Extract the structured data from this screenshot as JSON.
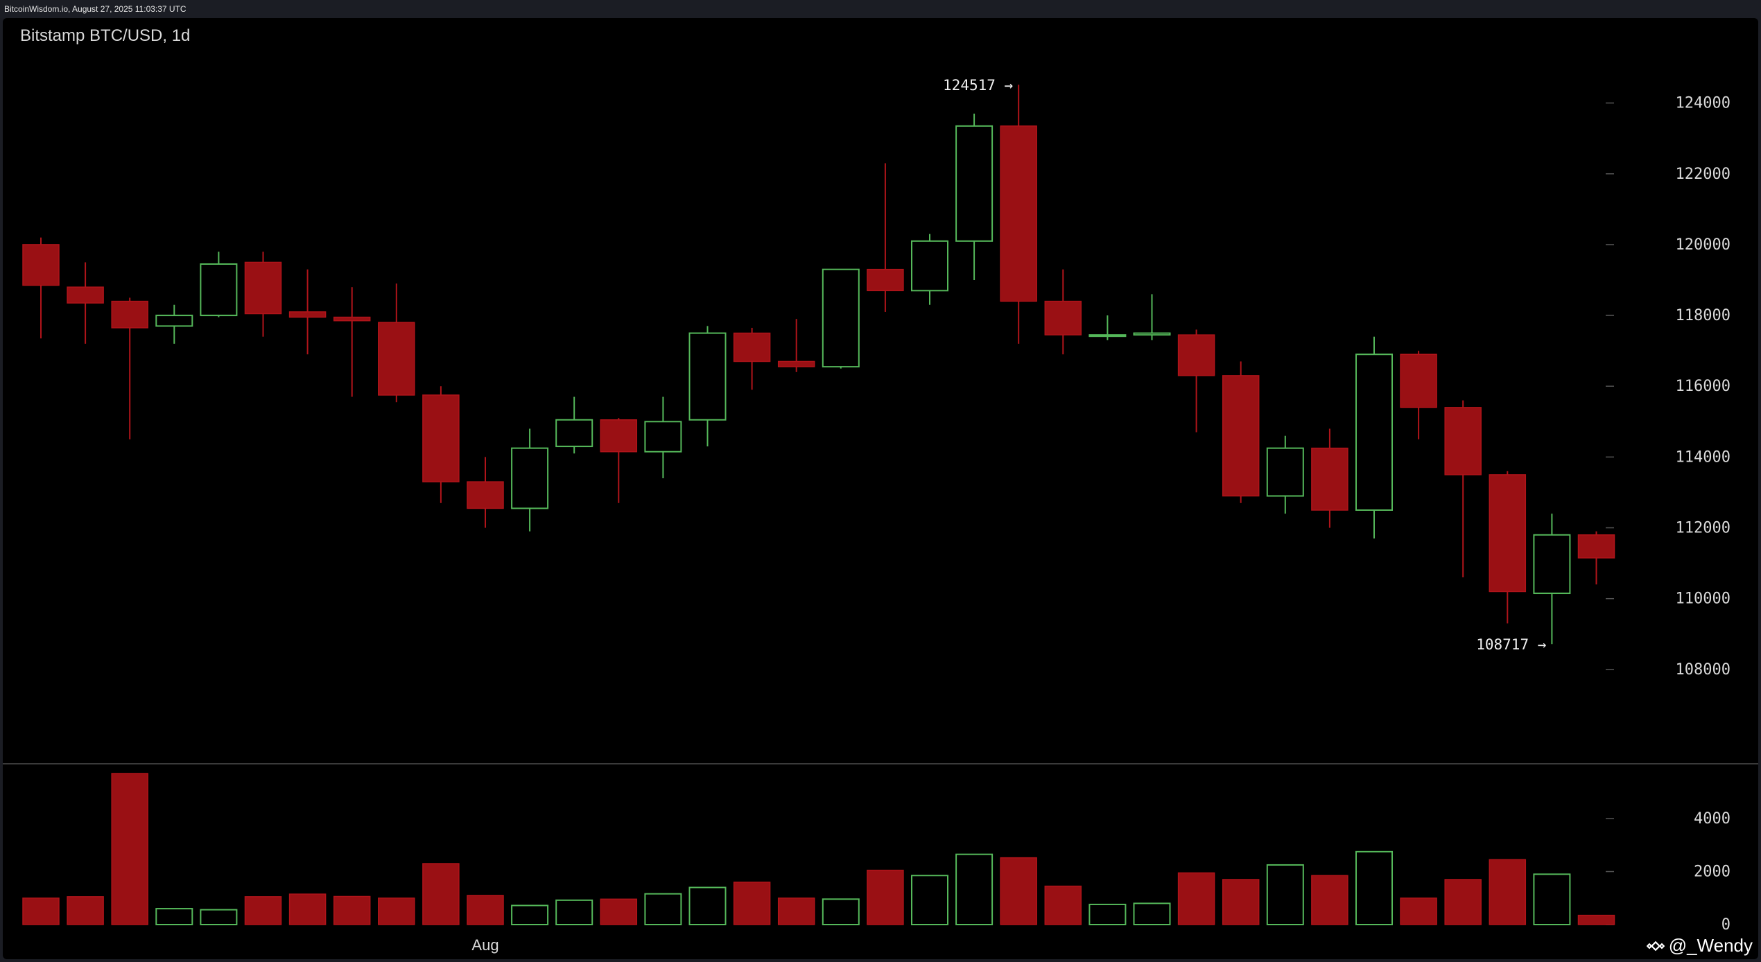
{
  "header": {
    "source": "BitcoinWisdom.io, August 27, 2025 11:03:37 UTC"
  },
  "chart": {
    "title": "Bitstamp BTC/USD, 1d"
  },
  "watermark": {
    "text": "@_Wendy"
  },
  "colors": {
    "up": "#55b85a",
    "down": "#9a1014",
    "background": "#000000",
    "text": "#d9d9d9",
    "tick": "#8c8c8c"
  },
  "chart_data": {
    "type": "candlestick",
    "title": "Bitstamp BTC/USD, 1d",
    "xlabel": "",
    "ylabel": "",
    "x_tick_labels": [
      {
        "index": 10,
        "label": "Aug"
      }
    ],
    "price_axis": {
      "ylim": [
        106000,
        125500
      ],
      "ticks": [
        "108000",
        "110000",
        "112000",
        "114000",
        "116000",
        "118000",
        "120000",
        "122000",
        "124000"
      ]
    },
    "volume_axis": {
      "ylim": [
        0,
        5700
      ],
      "ticks": [
        "0",
        "2000",
        "4000"
      ]
    },
    "grid": false,
    "annotations": [
      {
        "label": "124517 →",
        "index": 22,
        "value": 124517
      },
      {
        "label": "108717 →",
        "index": 34,
        "value": 108717
      }
    ],
    "candles": [
      {
        "open": 120000,
        "high": 120200,
        "low": 117350,
        "close": 118850,
        "volume": 1000
      },
      {
        "open": 118800,
        "high": 119500,
        "low": 117200,
        "close": 118350,
        "volume": 1050
      },
      {
        "open": 118400,
        "high": 118500,
        "low": 114500,
        "close": 117650,
        "volume": 5700
      },
      {
        "open": 117700,
        "high": 118300,
        "low": 117200,
        "close": 118000,
        "volume": 600
      },
      {
        "open": 118000,
        "high": 119800,
        "low": 117950,
        "close": 119450,
        "volume": 560
      },
      {
        "open": 119500,
        "high": 119800,
        "low": 117400,
        "close": 118050,
        "volume": 1050
      },
      {
        "open": 118100,
        "high": 119300,
        "low": 116900,
        "close": 117950,
        "volume": 1150
      },
      {
        "open": 117950,
        "high": 118800,
        "low": 115700,
        "close": 117850,
        "volume": 1060
      },
      {
        "open": 117800,
        "high": 118900,
        "low": 115550,
        "close": 115750,
        "volume": 1000
      },
      {
        "open": 115750,
        "high": 116000,
        "low": 112700,
        "close": 113300,
        "volume": 2300
      },
      {
        "open": 113300,
        "high": 114000,
        "low": 112000,
        "close": 112550,
        "volume": 1100
      },
      {
        "open": 112550,
        "high": 114800,
        "low": 111900,
        "close": 114250,
        "volume": 720
      },
      {
        "open": 114300,
        "high": 115700,
        "low": 114100,
        "close": 115050,
        "volume": 920
      },
      {
        "open": 115050,
        "high": 115100,
        "low": 112700,
        "close": 114150,
        "volume": 960
      },
      {
        "open": 114150,
        "high": 115700,
        "low": 113400,
        "close": 115000,
        "volume": 1160
      },
      {
        "open": 115050,
        "high": 117700,
        "low": 114300,
        "close": 117500,
        "volume": 1400
      },
      {
        "open": 117500,
        "high": 117650,
        "low": 115900,
        "close": 116700,
        "volume": 1600
      },
      {
        "open": 116700,
        "high": 117900,
        "low": 116400,
        "close": 116550,
        "volume": 1000
      },
      {
        "open": 116550,
        "high": 119300,
        "low": 116500,
        "close": 119300,
        "volume": 960
      },
      {
        "open": 119300,
        "high": 122300,
        "low": 118100,
        "close": 118700,
        "volume": 2050
      },
      {
        "open": 118700,
        "high": 120300,
        "low": 118300,
        "close": 120100,
        "volume": 1850
      },
      {
        "open": 120100,
        "high": 123700,
        "low": 119000,
        "close": 123350,
        "volume": 2650
      },
      {
        "open": 123350,
        "high": 124517,
        "low": 117200,
        "close": 118400,
        "volume": 2520
      },
      {
        "open": 118400,
        "high": 119300,
        "low": 116900,
        "close": 117450,
        "volume": 1450
      },
      {
        "open": 117450,
        "high": 118000,
        "low": 117300,
        "close": 117450,
        "volume": 760
      },
      {
        "open": 117450,
        "high": 118600,
        "low": 117300,
        "close": 117500,
        "volume": 800
      },
      {
        "open": 117450,
        "high": 117600,
        "low": 114700,
        "close": 116300,
        "volume": 1950
      },
      {
        "open": 116300,
        "high": 116700,
        "low": 112700,
        "close": 112900,
        "volume": 1700
      },
      {
        "open": 112900,
        "high": 114600,
        "low": 112400,
        "close": 114250,
        "volume": 2250
      },
      {
        "open": 114250,
        "high": 114800,
        "low": 112000,
        "close": 112500,
        "volume": 1850
      },
      {
        "open": 112500,
        "high": 117400,
        "low": 111700,
        "close": 116900,
        "volume": 2750
      },
      {
        "open": 116900,
        "high": 117000,
        "low": 114500,
        "close": 115400,
        "volume": 1000
      },
      {
        "open": 115400,
        "high": 115600,
        "low": 110600,
        "close": 113500,
        "volume": 1700
      },
      {
        "open": 113500,
        "high": 113600,
        "low": 109300,
        "close": 110200,
        "volume": 2450
      },
      {
        "open": 110150,
        "high": 112400,
        "low": 108717,
        "close": 111800,
        "volume": 1900
      },
      {
        "open": 111800,
        "high": 111900,
        "low": 110400,
        "close": 111150,
        "volume": 350
      }
    ]
  }
}
